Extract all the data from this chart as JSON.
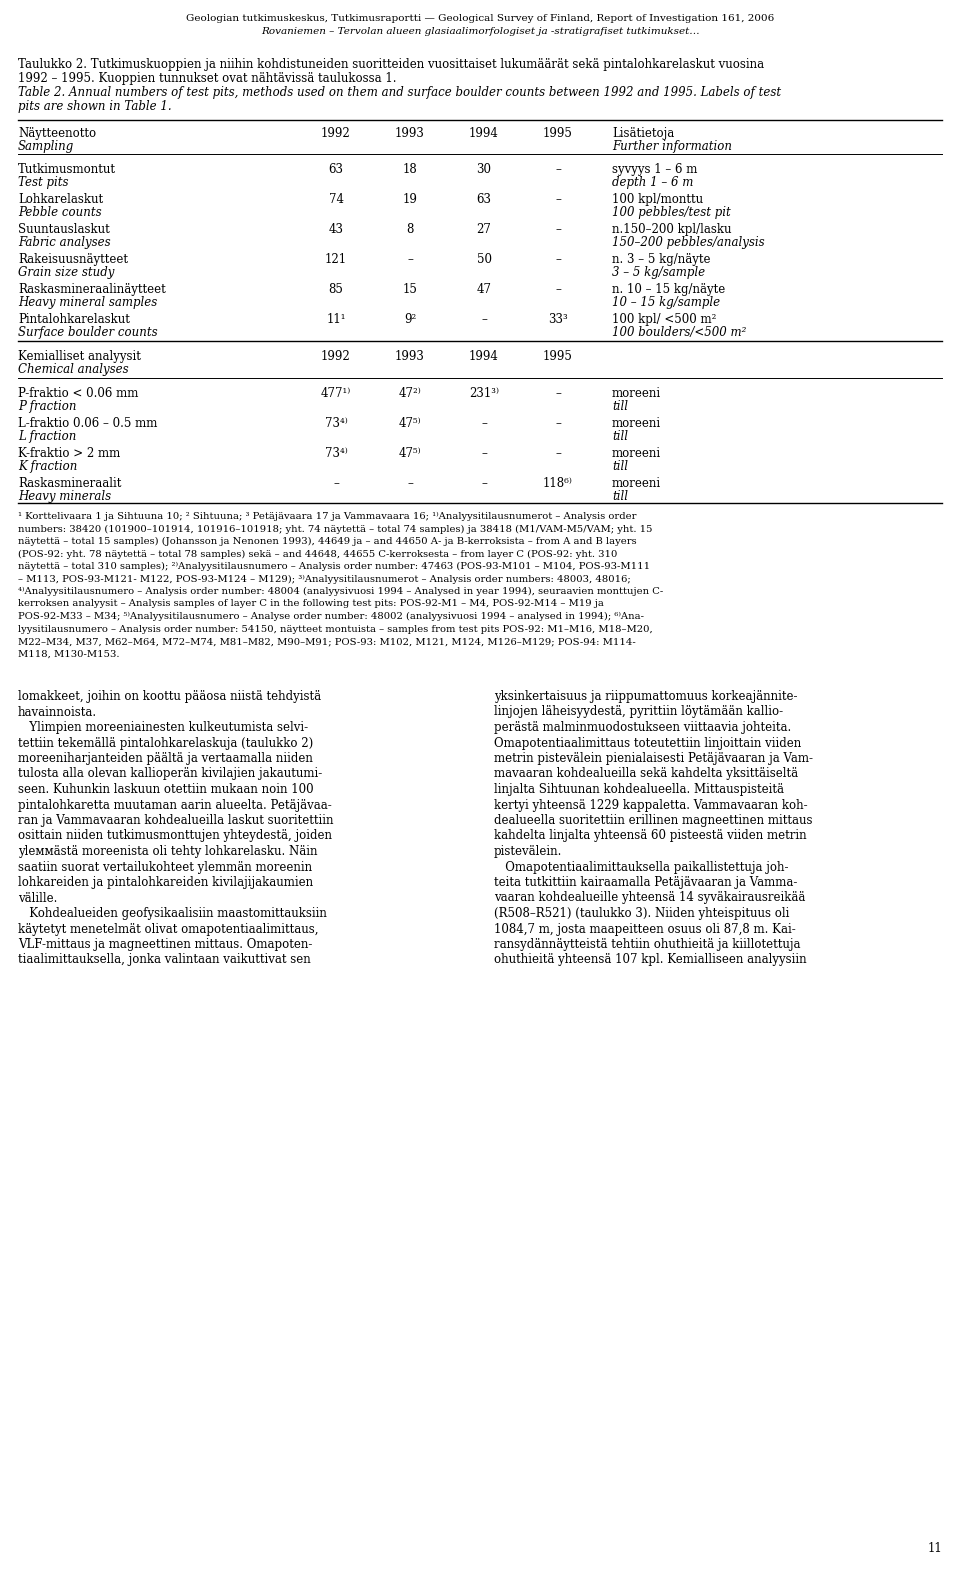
{
  "header_line1": "Geologian tutkimuskeskus, Tutkimusraportti — Geological Survey of Finland, Report of Investigation 161, 2006",
  "header_line2": "Rovaniemen – Tervolan alueen glasiaalimorfologiset ja -stratigrafiset tutkimukset…",
  "caption_fi_lines": [
    "Taulukko 2. Tutkimuskuoppien ja niihin kohdistuneiden suoritteiden vuosittaiset lukumäärät sekä pintalohkarelaskut vuosina",
    "1992 – 1995. Kuoppien tunnukset ovat nähtävissä taulukossa 1."
  ],
  "caption_en_lines": [
    "Table 2. Annual numbers of test pits, methods used on them and surface boulder counts between 1992 and 1995. Labels of test",
    "pits are shown in Table 1."
  ],
  "col_header_fi": "Näytteenotto",
  "col_header_en": "Sampling",
  "col_header_info_fi": "Lisätietoja",
  "col_header_info_en": "Further information",
  "years": [
    "1992",
    "1993",
    "1994",
    "1995"
  ],
  "sampling_rows": [
    {
      "fi": "Tutkimusmontut",
      "en": "Test pits",
      "v1992": "63",
      "v1993": "18",
      "v1994": "30",
      "v1995": "–",
      "info_fi": "syvyys 1 – 6 m",
      "info_en": "depth 1 – 6 m"
    },
    {
      "fi": "Lohkarelaskut",
      "en": "Pebble counts",
      "v1992": "74",
      "v1993": "19",
      "v1994": "63",
      "v1995": "–",
      "info_fi": "100 kpl/monttu",
      "info_en": "100 pebbles/test pit"
    },
    {
      "fi": "Suuntauslaskut",
      "en": "Fabric analyses",
      "v1992": "43",
      "v1993": "8",
      "v1994": "27",
      "v1995": "–",
      "info_fi": "n.150–200 kpl/lasku",
      "info_en": "150–200 pebbles/analysis"
    },
    {
      "fi": "Rakeisuusnäytteet",
      "en": "Grain size study",
      "v1992": "121",
      "v1993": "–",
      "v1994": "50",
      "v1995": "–",
      "info_fi": "n. 3 – 5 kg/näyte",
      "info_en": "3 – 5 kg/sample"
    },
    {
      "fi": "Raskasmineraalinäytteet",
      "en": "Heavy mineral samples",
      "v1992": "85",
      "v1993": "15",
      "v1994": "47",
      "v1995": "–",
      "info_fi": "n. 10 – 15 kg/näyte",
      "info_en": "10 – 15 kg/sample"
    },
    {
      "fi": "Pintalohkarelaskut",
      "en": "Surface boulder counts",
      "v1992": "11¹",
      "v1993": "9²",
      "v1994": "–",
      "v1995": "33³",
      "info_fi": "100 kpl/ <500 m²",
      "info_en": "100 boulders/<500 m²"
    }
  ],
  "chem_header_fi": "Kemialliset analyysit",
  "chem_header_en": "Chemical analyses",
  "chem_rows": [
    {
      "fi": "P-fraktio < 0.06 mm",
      "en": "P fraction",
      "v1992": "477¹⁾",
      "v1993": "47²⁾",
      "v1994": "231³⁾",
      "v1995": "–",
      "info_fi": "moreeni",
      "info_en": "till"
    },
    {
      "fi": "L-fraktio 0.06 – 0.5 mm",
      "en": "L fraction",
      "v1992": "73⁴⁾",
      "v1993": "47⁵⁾",
      "v1994": "–",
      "v1995": "–",
      "info_fi": "moreeni",
      "info_en": "till"
    },
    {
      "fi": "K-fraktio > 2 mm",
      "en": "K fraction",
      "v1992": "73⁴⁾",
      "v1993": "47⁵⁾",
      "v1994": "–",
      "v1995": "–",
      "info_fi": "moreeni",
      "info_en": "till"
    },
    {
      "fi": "Raskasmineraalit",
      "en": "Heavy minerals",
      "v1992": "–",
      "v1993": "–",
      "v1994": "–",
      "v1995": "118⁶⁾",
      "info_fi": "moreeni",
      "info_en": "till"
    }
  ],
  "footnote_lines": [
    "¹ Korttelivaara 1 ja Sihtuuna 10; ² Sihtuuna; ³ Petäjävaara 17 ja Vammavaara 16; ¹⁾Analyysitilausnumerot – Analysis order",
    "numbers: 38420 (101900–101914, 101916–101918; yht. 74 näytettä – total 74 samples) ja 38418 (M1/VAM-M5/VAM; yht. 15",
    "näytettä – total 15 samples) (Johansson ja Nenonen 1993), 44649 ja – and 44650 A- ja B-kerroksista – from A and B layers",
    "(POS-92: yht. 78 näytettä – total 78 samples) sekä – and 44648, 44655 C-kerroksesta – from layer C (POS-92: yht. 310",
    "näytettä – total 310 samples); ²⁾Analyysitilausnumero – Analysis order number: 47463 (POS-93-M101 – M104, POS-93-M111",
    "– M113, POS-93-M121- M122, POS-93-M124 – M129); ³⁾Analyysitilausnumerot – Analysis order numbers: 48003, 48016;",
    "⁴⁾Analyysitilausnumero – Analysis order number: 48004 (analyysivuosi 1994 – Analysed in year 1994), seuraavien monttujen C-",
    "kerroksen analyysit – Analysis samples of layer C in the following test pits: POS-92-M1 – M4, POS-92-M14 – M19 ja",
    "POS-92-M33 – M34; ⁵⁾Analyysitilausnumero – Analyse order number: 48002 (analyysivuosi 1994 – analysed in 1994); ⁶⁾Ana-",
    "lyysitilausnumero – Analysis order number: 54150, näytteet montuista – samples from test pits POS-92: M1–M16, M18–M20,",
    "M22–M34, M37, M62–M64, M72–M74, M81–M82, M90–M91; POS-93: M102, M121, M124, M126–M129; POS-94: M114-",
    "M118, M130-M153."
  ],
  "body_left_lines": [
    "lomakkeet, joihin on koottu pääosa niistä tehdyistä",
    "havainnoista.",
    "   Ylimpien moreeniainesten kulkeutumista selvi-",
    "tettiin tekemällä pintalohkarelaskuja (taulukko 2)",
    "moreeniharjanteiden päältä ja vertaamalla niiden",
    "tulosta alla olevan kallioperän kivilajien jakautumi-",
    "seen. Kuhunkin laskuun otettiin mukaan noin 100",
    "pintalohkaretta muutaman aarin alueelta. Petäjävaa-",
    "ran ja Vammavaaran kohdealueilla laskut suoritettiin",
    "osittain niiden tutkimusmonttujen yhteydestä, joiden",
    "ylеммästä moreenista oli tehty lohkarelasku. Näin",
    "saatiin suorat vertailukohteet ylemmän moreenin",
    "lohkareiden ja pintalohkareiden kivilajijakaumien",
    "välille.",
    "   Kohdealueiden geofysikaalisiin maastomittauksiin",
    "käytetyt menetelmät olivat omapotentiaalimittaus,",
    "VLF-mittaus ja magneettinen mittaus. Omapoten-",
    "tiaalimittauksella, jonka valintaan vaikuttivat sen"
  ],
  "body_right_lines": [
    "yksinkertaisuus ja riippumattomuus korkeajännite-",
    "linjojen läheisyydestä, pyrittiin löytämään kallio-",
    "perästä malminmuodostukseen viittaavia johteita.",
    "Omapotentiaalimittaus toteutettiin linjoittain viiden",
    "metrin pistevälein pienialaisesti Petäjävaaran ja Vam-",
    "mavaaran kohdealueilla sekä kahdelta yksittäiseltä",
    "linjalta Sihtuunan kohdealueella. Mittauspisteitä",
    "kertyi yhteensä 1229 kappaletta. Vammavaaran koh-",
    "dealueella suoritettiin erillinen magneettinen mittaus",
    "kahdelta linjalta yhteensä 60 pisteestä viiden metrin",
    "pistevälein.",
    "   Omapotentiaalimittauksella paikallistettuja joh-",
    "teita tutkittiin kairaamalla Petäjävaaran ja Vamma-",
    "vaaran kohdealueille yhteensä 14 syväkairausreikää",
    "(R508–R521) (taulukko 3). Niiden yhteispituus oli",
    "1084,7 m, josta maapeitteen osuus oli 87,8 m. Kai-",
    "ransydännäytteistä tehtiin ohuthieitä ja kiillotettuja",
    "ohuthieitä yhteensä 107 kpl. Kemialliseen analyysiin"
  ],
  "page_number": "11",
  "bg_color": "#ffffff",
  "text_color": "#000000"
}
